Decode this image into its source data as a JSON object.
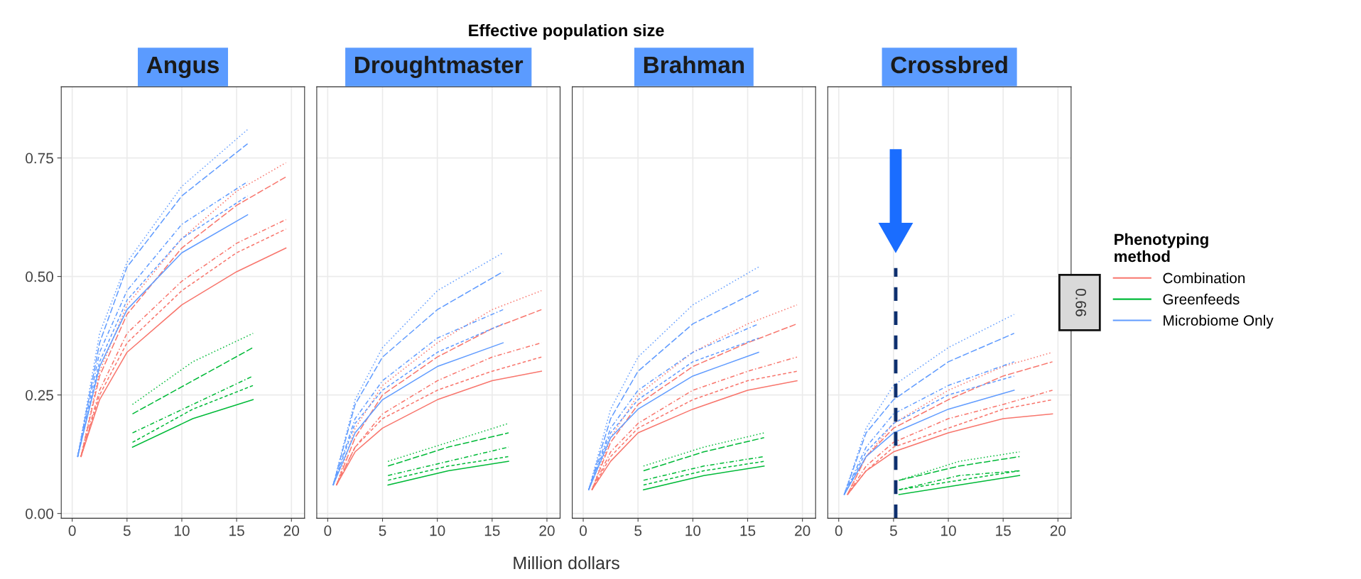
{
  "chart_data": [
    {
      "type": "other",
      "title": "Effective population size",
      "xlabel": "Million dollars"
    },
    {
      "type": "line",
      "title": "Angus",
      "xlim": [
        -1,
        21.2
      ],
      "ylim": [
        -0.01,
        0.9
      ],
      "xticks": [
        0,
        5,
        10,
        15,
        20
      ],
      "yticks": [
        {
          "value": 0,
          "label": "0.00"
        },
        {
          "value": 0.25,
          "label": "0.25"
        },
        {
          "value": 0.5,
          "label": "0.50"
        },
        {
          "value": 0.75,
          "label": "0.75"
        }
      ],
      "grid": true,
      "series": [
        {
          "color": "#f8766d",
          "line_style": "dotted",
          "x": [
            0.8,
            2.5,
            5,
            10,
            15,
            19.5
          ],
          "values": [
            0.12,
            0.3,
            0.44,
            0.58,
            0.68,
            0.74
          ]
        },
        {
          "color": "#f8766d",
          "line_style": "longdash",
          "x": [
            0.8,
            2.5,
            5,
            10,
            15,
            19.5
          ],
          "values": [
            0.12,
            0.29,
            0.42,
            0.56,
            0.65,
            0.71
          ]
        },
        {
          "color": "#f8766d",
          "line_style": "dashdot",
          "x": [
            0.8,
            2.5,
            5,
            10,
            15,
            19.5
          ],
          "values": [
            0.12,
            0.26,
            0.38,
            0.49,
            0.57,
            0.62
          ]
        },
        {
          "color": "#f8766d",
          "line_style": "dashed",
          "x": [
            0.8,
            2.5,
            5,
            10,
            15,
            19.5
          ],
          "values": [
            0.12,
            0.25,
            0.36,
            0.47,
            0.55,
            0.6
          ]
        },
        {
          "color": "#f8766d",
          "line_style": "solid",
          "x": [
            0.8,
            2.5,
            5,
            10,
            15,
            19.5
          ],
          "values": [
            0.12,
            0.24,
            0.34,
            0.44,
            0.51,
            0.56
          ]
        },
        {
          "color": "#00ba38",
          "line_style": "dotted",
          "x": [
            5.5,
            11,
            16.5
          ],
          "values": [
            0.23,
            0.32,
            0.38
          ]
        },
        {
          "color": "#00ba38",
          "line_style": "longdash",
          "x": [
            5.5,
            11,
            16.5
          ],
          "values": [
            0.21,
            0.28,
            0.35
          ]
        },
        {
          "color": "#00ba38",
          "line_style": "dashdot",
          "x": [
            5.5,
            11,
            16.5
          ],
          "values": [
            0.17,
            0.23,
            0.29
          ]
        },
        {
          "color": "#00ba38",
          "line_style": "dashed",
          "x": [
            5.5,
            11,
            16.5
          ],
          "values": [
            0.15,
            0.22,
            0.27
          ]
        },
        {
          "color": "#00ba38",
          "line_style": "solid",
          "x": [
            5.5,
            11,
            16.5
          ],
          "values": [
            0.14,
            0.2,
            0.24
          ]
        },
        {
          "color": "#619cff",
          "line_style": "dotted",
          "x": [
            0.5,
            2.5,
            5,
            10,
            16
          ],
          "values": [
            0.12,
            0.38,
            0.53,
            0.69,
            0.81
          ]
        },
        {
          "color": "#619cff",
          "line_style": "longdash",
          "x": [
            0.5,
            2.5,
            5,
            10,
            16
          ],
          "values": [
            0.12,
            0.36,
            0.52,
            0.67,
            0.78
          ]
        },
        {
          "color": "#619cff",
          "line_style": "dashdot",
          "x": [
            0.5,
            2.5,
            5,
            10,
            16
          ],
          "values": [
            0.12,
            0.34,
            0.47,
            0.61,
            0.7
          ]
        },
        {
          "color": "#619cff",
          "line_style": "dashed",
          "x": [
            0.5,
            2.5,
            5,
            10,
            16
          ],
          "values": [
            0.12,
            0.32,
            0.45,
            0.58,
            0.67
          ]
        },
        {
          "color": "#619cff",
          "line_style": "solid",
          "x": [
            0.5,
            2.5,
            5,
            10,
            16
          ],
          "values": [
            0.12,
            0.31,
            0.43,
            0.55,
            0.63
          ]
        }
      ]
    },
    {
      "type": "line",
      "title": "Droughtmaster",
      "xlim": [
        -1,
        21.2
      ],
      "ylim": [
        -0.01,
        0.9
      ],
      "xticks": [
        0,
        5,
        10,
        15,
        20
      ],
      "tick_labels": "x",
      "grid": true,
      "series": [
        {
          "color": "#f8766d",
          "line_style": "dotted",
          "x": [
            0.8,
            2.5,
            5,
            10,
            15,
            19.5
          ],
          "values": [
            0.06,
            0.18,
            0.27,
            0.36,
            0.43,
            0.47
          ]
        },
        {
          "color": "#f8766d",
          "line_style": "longdash",
          "x": [
            0.8,
            2.5,
            5,
            10,
            15,
            19.5
          ],
          "values": [
            0.06,
            0.16,
            0.25,
            0.33,
            0.39,
            0.43
          ]
        },
        {
          "color": "#f8766d",
          "line_style": "dashdot",
          "x": [
            0.8,
            2.5,
            5,
            10,
            15,
            19.5
          ],
          "values": [
            0.06,
            0.14,
            0.21,
            0.28,
            0.33,
            0.36
          ]
        },
        {
          "color": "#f8766d",
          "line_style": "dashed",
          "x": [
            0.8,
            2.5,
            5,
            10,
            15,
            19.5
          ],
          "values": [
            0.06,
            0.14,
            0.2,
            0.26,
            0.3,
            0.33
          ]
        },
        {
          "color": "#f8766d",
          "line_style": "solid",
          "x": [
            0.8,
            2.5,
            5,
            10,
            15,
            19.5
          ],
          "values": [
            0.06,
            0.13,
            0.18,
            0.24,
            0.28,
            0.3
          ]
        },
        {
          "color": "#00ba38",
          "line_style": "dotted",
          "x": [
            5.5,
            11,
            16.5
          ],
          "values": [
            0.11,
            0.15,
            0.19
          ]
        },
        {
          "color": "#00ba38",
          "line_style": "longdash",
          "x": [
            5.5,
            11,
            16.5
          ],
          "values": [
            0.1,
            0.14,
            0.17
          ]
        },
        {
          "color": "#00ba38",
          "line_style": "dashdot",
          "x": [
            5.5,
            11,
            16.5
          ],
          "values": [
            0.08,
            0.11,
            0.14
          ]
        },
        {
          "color": "#00ba38",
          "line_style": "dashed",
          "x": [
            5.5,
            11,
            16.5
          ],
          "values": [
            0.07,
            0.1,
            0.12
          ]
        },
        {
          "color": "#00ba38",
          "line_style": "solid",
          "x": [
            5.5,
            11,
            16.5
          ],
          "values": [
            0.06,
            0.09,
            0.11
          ]
        },
        {
          "color": "#619cff",
          "line_style": "dotted",
          "x": [
            0.5,
            2.5,
            5,
            10,
            16
          ],
          "values": [
            0.06,
            0.24,
            0.35,
            0.47,
            0.55
          ]
        },
        {
          "color": "#619cff",
          "line_style": "longdash",
          "x": [
            0.5,
            2.5,
            5,
            10,
            16
          ],
          "values": [
            0.06,
            0.23,
            0.33,
            0.43,
            0.51
          ]
        },
        {
          "color": "#619cff",
          "line_style": "dashdot",
          "x": [
            0.5,
            2.5,
            5,
            10,
            16
          ],
          "values": [
            0.06,
            0.2,
            0.28,
            0.37,
            0.43
          ]
        },
        {
          "color": "#619cff",
          "line_style": "dashed",
          "x": [
            0.5,
            2.5,
            5,
            10,
            16
          ],
          "values": [
            0.06,
            0.19,
            0.26,
            0.34,
            0.4
          ]
        },
        {
          "color": "#619cff",
          "line_style": "solid",
          "x": [
            0.5,
            2.5,
            5,
            10,
            16
          ],
          "values": [
            0.06,
            0.17,
            0.24,
            0.31,
            0.36
          ]
        }
      ]
    },
    {
      "type": "line",
      "title": "Brahman",
      "xlim": [
        -1,
        21.2
      ],
      "ylim": [
        -0.01,
        0.9
      ],
      "xticks": [
        0,
        5,
        10,
        15,
        20
      ],
      "tick_labels": "x",
      "grid": true,
      "series": [
        {
          "color": "#f8766d",
          "line_style": "dotted",
          "x": [
            0.8,
            2.5,
            5,
            10,
            15,
            19.5
          ],
          "values": [
            0.05,
            0.16,
            0.25,
            0.34,
            0.4,
            0.44
          ]
        },
        {
          "color": "#f8766d",
          "line_style": "longdash",
          "x": [
            0.8,
            2.5,
            5,
            10,
            15,
            19.5
          ],
          "values": [
            0.05,
            0.15,
            0.23,
            0.31,
            0.36,
            0.4
          ]
        },
        {
          "color": "#f8766d",
          "line_style": "dashdot",
          "x": [
            0.8,
            2.5,
            5,
            10,
            15,
            19.5
          ],
          "values": [
            0.05,
            0.13,
            0.19,
            0.26,
            0.3,
            0.33
          ]
        },
        {
          "color": "#f8766d",
          "line_style": "dashed",
          "x": [
            0.8,
            2.5,
            5,
            10,
            15,
            19.5
          ],
          "values": [
            0.05,
            0.12,
            0.18,
            0.24,
            0.28,
            0.3
          ]
        },
        {
          "color": "#f8766d",
          "line_style": "solid",
          "x": [
            0.8,
            2.5,
            5,
            10,
            15,
            19.5
          ],
          "values": [
            0.05,
            0.11,
            0.17,
            0.22,
            0.26,
            0.28
          ]
        },
        {
          "color": "#00ba38",
          "line_style": "dotted",
          "x": [
            5.5,
            11,
            16.5
          ],
          "values": [
            0.1,
            0.14,
            0.17
          ]
        },
        {
          "color": "#00ba38",
          "line_style": "longdash",
          "x": [
            5.5,
            11,
            16.5
          ],
          "values": [
            0.09,
            0.13,
            0.16
          ]
        },
        {
          "color": "#00ba38",
          "line_style": "dashdot",
          "x": [
            5.5,
            11,
            16.5
          ],
          "values": [
            0.07,
            0.1,
            0.12
          ]
        },
        {
          "color": "#00ba38",
          "line_style": "dashed",
          "x": [
            5.5,
            11,
            16.5
          ],
          "values": [
            0.06,
            0.09,
            0.11
          ]
        },
        {
          "color": "#00ba38",
          "line_style": "solid",
          "x": [
            5.5,
            11,
            16.5
          ],
          "values": [
            0.05,
            0.08,
            0.1
          ]
        },
        {
          "color": "#619cff",
          "line_style": "dotted",
          "x": [
            0.5,
            2.5,
            5,
            10,
            16
          ],
          "values": [
            0.05,
            0.22,
            0.33,
            0.44,
            0.52
          ]
        },
        {
          "color": "#619cff",
          "line_style": "longdash",
          "x": [
            0.5,
            2.5,
            5,
            10,
            16
          ],
          "values": [
            0.05,
            0.2,
            0.3,
            0.4,
            0.47
          ]
        },
        {
          "color": "#619cff",
          "line_style": "dashdot",
          "x": [
            0.5,
            2.5,
            5,
            10,
            16
          ],
          "values": [
            0.05,
            0.18,
            0.26,
            0.34,
            0.4
          ]
        },
        {
          "color": "#619cff",
          "line_style": "dashed",
          "x": [
            0.5,
            2.5,
            5,
            10,
            16
          ],
          "values": [
            0.05,
            0.17,
            0.24,
            0.32,
            0.37
          ]
        },
        {
          "color": "#619cff",
          "line_style": "solid",
          "x": [
            0.5,
            2.5,
            5,
            10,
            16
          ],
          "values": [
            0.05,
            0.16,
            0.22,
            0.29,
            0.34
          ]
        }
      ]
    },
    {
      "type": "line",
      "title": "Crossbred",
      "annotations": [
        "0.66"
      ],
      "legend_title": "Phenotyping\nmethod",
      "legend": "right",
      "xlim": [
        -1,
        21.2
      ],
      "ylim": [
        -0.01,
        0.9
      ],
      "xticks": [
        0,
        5,
        10,
        15,
        20
      ],
      "tick_labels": "x",
      "grid": true,
      "ref_lines": [
        {
          "axis": "x",
          "value": 5.2,
          "color": "#0d2f6e",
          "line_style": "dashed"
        }
      ],
      "series": [
        {
          "color": "#f8766d",
          "line_style": "dotted",
          "x": [
            0.8,
            2.5,
            5,
            10,
            15,
            19.5
          ],
          "values": [
            0.04,
            0.12,
            0.19,
            0.26,
            0.31,
            0.34
          ]
        },
        {
          "color": "#f8766d",
          "line_style": "longdash",
          "x": [
            0.8,
            2.5,
            5,
            10,
            15,
            19.5
          ],
          "values": [
            0.04,
            0.12,
            0.18,
            0.24,
            0.29,
            0.32
          ]
        },
        {
          "color": "#f8766d",
          "line_style": "dashdot",
          "x": [
            0.8,
            2.5,
            5,
            10,
            15,
            19.5
          ],
          "values": [
            0.04,
            0.1,
            0.15,
            0.2,
            0.23,
            0.26
          ]
        },
        {
          "color": "#f8766d",
          "line_style": "dashed",
          "x": [
            0.8,
            2.5,
            5,
            10,
            15,
            19.5
          ],
          "values": [
            0.04,
            0.09,
            0.14,
            0.18,
            0.22,
            0.24
          ]
        },
        {
          "name": "Combination",
          "color": "#f8766d",
          "line_style": "solid",
          "x": [
            0.8,
            2.5,
            5,
            10,
            15,
            19.5
          ],
          "values": [
            0.04,
            0.09,
            0.13,
            0.17,
            0.2,
            0.21
          ]
        },
        {
          "color": "#00ba38",
          "line_style": "dotted",
          "x": [
            5.5,
            11,
            16.5
          ],
          "values": [
            0.07,
            0.11,
            0.13
          ]
        },
        {
          "color": "#00ba38",
          "line_style": "longdash",
          "x": [
            5.5,
            11,
            16.5
          ],
          "values": [
            0.07,
            0.1,
            0.12
          ]
        },
        {
          "color": "#00ba38",
          "line_style": "dashdot",
          "x": [
            5.5,
            11,
            16.5
          ],
          "values": [
            0.05,
            0.08,
            0.09
          ]
        },
        {
          "color": "#00ba38",
          "line_style": "dashed",
          "x": [
            5.5,
            11,
            16.5
          ],
          "values": [
            0.05,
            0.07,
            0.09
          ]
        },
        {
          "name": "Greenfeeds",
          "color": "#00ba38",
          "line_style": "solid",
          "x": [
            5.5,
            11,
            16.5
          ],
          "values": [
            0.04,
            0.06,
            0.08
          ]
        },
        {
          "color": "#619cff",
          "line_style": "dotted",
          "x": [
            0.5,
            2.5,
            5,
            10,
            16
          ],
          "values": [
            0.04,
            0.18,
            0.27,
            0.35,
            0.42
          ]
        },
        {
          "color": "#619cff",
          "line_style": "longdash",
          "x": [
            0.5,
            2.5,
            5,
            10,
            16
          ],
          "values": [
            0.04,
            0.17,
            0.24,
            0.32,
            0.38
          ]
        },
        {
          "color": "#619cff",
          "line_style": "dashdot",
          "x": [
            0.5,
            2.5,
            5,
            10,
            16
          ],
          "values": [
            0.04,
            0.14,
            0.21,
            0.27,
            0.32
          ]
        },
        {
          "color": "#619cff",
          "line_style": "dashed",
          "x": [
            0.5,
            2.5,
            5,
            10,
            16
          ],
          "values": [
            0.04,
            0.13,
            0.19,
            0.25,
            0.29
          ]
        },
        {
          "name": "Microbiome Only",
          "color": "#619cff",
          "line_style": "solid",
          "x": [
            0.5,
            2.5,
            5,
            10,
            16
          ],
          "values": [
            0.04,
            0.12,
            0.17,
            0.22,
            0.26
          ]
        }
      ]
    }
  ]
}
